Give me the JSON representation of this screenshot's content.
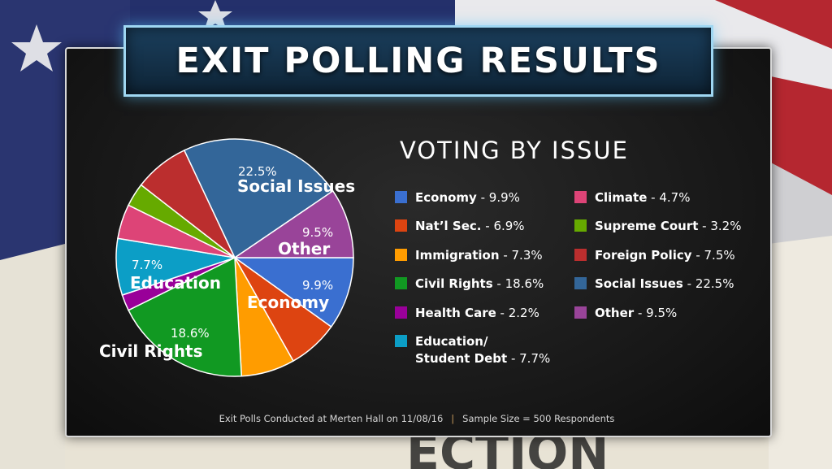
{
  "title": "EXIT POLLING RESULTS",
  "subtitle": "VOTING BY ISSUE",
  "footer": {
    "left": "Exit Polls Conducted at Merten Hall on 11/08/16",
    "separator": "|",
    "right": "Sample Size = 500 Respondents"
  },
  "legend": [
    {
      "name": "Economy",
      "value": "- 9.9%",
      "color": "#3a6fd0"
    },
    {
      "name": "Nat’l Sec.",
      "value": "- 6.9%",
      "color": "#dd4411"
    },
    {
      "name": "Immigration",
      "value": "- 7.3%",
      "color": "#ff9c00"
    },
    {
      "name": "Civil Rights",
      "value": "- 18.6%",
      "color": "#119922"
    },
    {
      "name": "Health Care",
      "value": "- 2.2%",
      "color": "#990099"
    },
    {
      "name": "Education/",
      "name2": "Student Debt",
      "value": "- 7.7%",
      "color": "#0c9ec6"
    },
    {
      "name": "Climate",
      "value": "- 4.7%",
      "color": "#dd4477"
    },
    {
      "name": "Supreme Court",
      "value": "- 3.2%",
      "color": "#66aa00"
    },
    {
      "name": "Foreign Policy",
      "value": "- 7.5%",
      "color": "#bb2e2e"
    },
    {
      "name": "Social Issues",
      "value": "- 22.5%",
      "color": "#336699"
    },
    {
      "name": "Other",
      "value": "- 9.5%",
      "color": "#994499"
    }
  ],
  "pie_labels": {
    "social": {
      "pct": "22.5%",
      "name": "Social Issues"
    },
    "other": {
      "pct": "9.5%",
      "name": "Other"
    },
    "economy": {
      "pct": "9.9%",
      "name": "Economy"
    },
    "education": {
      "pct": "7.7%",
      "name": "Education"
    },
    "civil": {
      "pct": "18.6%",
      "name": "Civil Rights"
    }
  },
  "chart_data": {
    "type": "pie",
    "title": "VOTING BY ISSUE",
    "categories": [
      "Economy",
      "Nat’l Sec.",
      "Immigration",
      "Civil Rights",
      "Health Care",
      "Education/ Student Debt",
      "Climate",
      "Supreme Court",
      "Foreign Policy",
      "Social Issues",
      "Other"
    ],
    "values": [
      9.9,
      6.9,
      7.3,
      18.6,
      2.2,
      7.7,
      4.7,
      3.2,
      7.5,
      22.5,
      9.5
    ],
    "colors": [
      "#3a6fd0",
      "#dd4411",
      "#ff9c00",
      "#119922",
      "#990099",
      "#0c9ec6",
      "#dd4477",
      "#66aa00",
      "#bb2e2e",
      "#336699",
      "#994499"
    ],
    "legend": "right"
  }
}
